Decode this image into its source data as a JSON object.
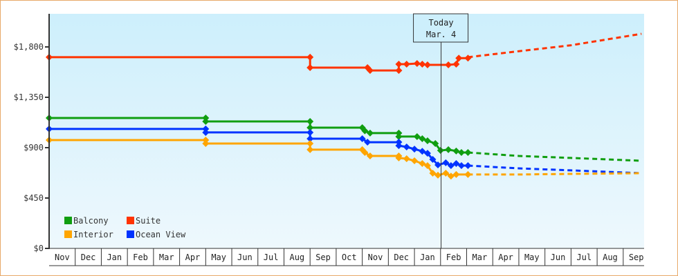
{
  "chart_data": {
    "type": "line",
    "title": "",
    "xlabel": "",
    "ylabel": "",
    "ylim": [
      0,
      2100
    ],
    "y_ticks": [
      {
        "value": 0,
        "label": "$0"
      },
      {
        "value": 450,
        "label": "$450"
      },
      {
        "value": 900,
        "label": "$900"
      },
      {
        "value": 1350,
        "label": "$1,350"
      },
      {
        "value": 1800,
        "label": "$1,800"
      }
    ],
    "x_months": [
      "Nov",
      "Dec",
      "Jan",
      "Feb",
      "Mar",
      "Apr",
      "May",
      "Jun",
      "Jul",
      "Aug",
      "Sep",
      "Oct",
      "Nov",
      "Dec",
      "Jan",
      "Feb",
      "Mar",
      "Apr",
      "May",
      "Jun",
      "Jul",
      "Aug",
      "Sep"
    ],
    "today_marker": {
      "line1": "Today",
      "line2": "Mar. 4",
      "x_month_index": 15.1
    },
    "legend": [
      {
        "name": "Balcony",
        "color": "#109e10"
      },
      {
        "name": "Suite",
        "color": "#ff3300"
      },
      {
        "name": "Interior",
        "color": "#ffa500"
      },
      {
        "name": "Ocean View",
        "color": "#0033ff"
      }
    ],
    "series": [
      {
        "name": "Suite",
        "color": "#ff3300",
        "points": [
          [
            0,
            1708
          ],
          [
            6,
            1708
          ],
          [
            10,
            1708
          ],
          [
            10,
            1615
          ],
          [
            12.2,
            1615
          ],
          [
            12.3,
            1590
          ],
          [
            13.4,
            1590
          ],
          [
            13.4,
            1646
          ],
          [
            13.7,
            1646
          ],
          [
            14.1,
            1652
          ],
          [
            14.3,
            1646
          ],
          [
            14.5,
            1640
          ],
          [
            14.9,
            1640
          ],
          [
            15.3,
            1640
          ],
          [
            15.6,
            1646
          ],
          [
            15.7,
            1700
          ],
          [
            16.05,
            1700
          ]
        ],
        "forecast": [
          [
            16.05,
            1708
          ],
          [
            18,
            1762
          ],
          [
            20,
            1815
          ],
          [
            22.7,
            1917
          ]
        ]
      },
      {
        "name": "Balcony",
        "color": "#109e10",
        "points": [
          [
            0,
            1165
          ],
          [
            6,
            1165
          ],
          [
            6,
            1134
          ],
          [
            10,
            1134
          ],
          [
            10,
            1079
          ],
          [
            12,
            1079
          ],
          [
            12.1,
            1050
          ],
          [
            12.3,
            1030
          ],
          [
            13.4,
            1030
          ],
          [
            13.4,
            999
          ],
          [
            13.7,
            999
          ],
          [
            14.1,
            999
          ],
          [
            14.3,
            980
          ],
          [
            14.5,
            962
          ],
          [
            14.8,
            937
          ],
          [
            15.0,
            875
          ],
          [
            15.3,
            882
          ],
          [
            15.6,
            870
          ],
          [
            15.8,
            857
          ],
          [
            16.05,
            857
          ]
        ],
        "forecast": [
          [
            16.05,
            857
          ],
          [
            18,
            826
          ],
          [
            20,
            808
          ],
          [
            22.7,
            783
          ]
        ]
      },
      {
        "name": "Ocean View",
        "color": "#0033ff",
        "points": [
          [
            0,
            1067
          ],
          [
            6,
            1067
          ],
          [
            6,
            1036
          ],
          [
            10,
            1036
          ],
          [
            10,
            980
          ],
          [
            12,
            980
          ],
          [
            12.2,
            949
          ],
          [
            13.4,
            949
          ],
          [
            13.4,
            918
          ],
          [
            13.7,
            906
          ],
          [
            14.0,
            887
          ],
          [
            14.3,
            868
          ],
          [
            14.5,
            850
          ],
          [
            14.7,
            795
          ],
          [
            14.9,
            746
          ],
          [
            15.2,
            765
          ],
          [
            15.4,
            740
          ],
          [
            15.6,
            758
          ],
          [
            15.8,
            740
          ],
          [
            16.05,
            740
          ]
        ],
        "forecast": [
          [
            16.05,
            740
          ],
          [
            18,
            715
          ],
          [
            20,
            697
          ],
          [
            22.7,
            672
          ]
        ]
      },
      {
        "name": "Interior",
        "color": "#ffa500",
        "points": [
          [
            0,
            968
          ],
          [
            6,
            968
          ],
          [
            6,
            937
          ],
          [
            10,
            937
          ],
          [
            10,
            882
          ],
          [
            12,
            882
          ],
          [
            12.1,
            857
          ],
          [
            12.3,
            826
          ],
          [
            13.4,
            826
          ],
          [
            13.4,
            808
          ],
          [
            13.7,
            801
          ],
          [
            14.0,
            783
          ],
          [
            14.3,
            758
          ],
          [
            14.5,
            740
          ],
          [
            14.7,
            672
          ],
          [
            14.9,
            654
          ],
          [
            15.2,
            672
          ],
          [
            15.4,
            646
          ],
          [
            15.6,
            660
          ],
          [
            15.8,
            660
          ],
          [
            16.05,
            660
          ]
        ],
        "forecast": [
          [
            16.05,
            660
          ],
          [
            18,
            660
          ],
          [
            20,
            666
          ],
          [
            22.7,
            672
          ]
        ]
      }
    ]
  },
  "colors": {
    "frame_border": "#e8a968",
    "plot_bg_top": "#cdeffc",
    "plot_bg_bottom": "#eef8fd",
    "axis": "#333333"
  }
}
